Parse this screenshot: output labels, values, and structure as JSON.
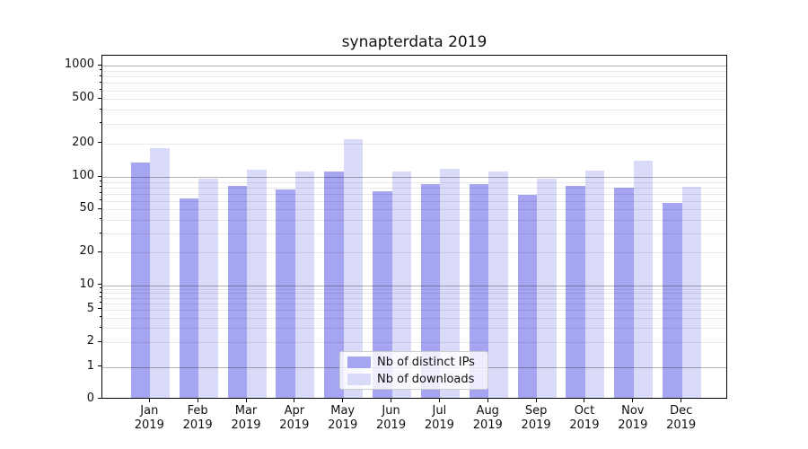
{
  "chart_data": {
    "type": "bar",
    "title": "synapterdata 2019",
    "categories": [
      "Jan",
      "Feb",
      "Mar",
      "Apr",
      "May",
      "Jun",
      "Jul",
      "Aug",
      "Sep",
      "Oct",
      "Nov",
      "Dec"
    ],
    "year_label": "2019",
    "series": [
      {
        "name": "Nb of distinct IPs",
        "color": "#a5a5f2",
        "values": [
          130,
          62,
          80,
          74,
          108,
          71,
          83,
          84,
          66,
          81,
          78,
          56
        ]
      },
      {
        "name": "Nb of downloads",
        "color": "#d9d9f8",
        "values": [
          175,
          93,
          113,
          108,
          212,
          108,
          115,
          108,
          93,
          110,
          137,
          79
        ]
      }
    ],
    "yscale": "symlog",
    "yticks": [
      0,
      1,
      2,
      5,
      10,
      20,
      50,
      100,
      200,
      500,
      1000
    ],
    "ylim": [
      0,
      1200
    ],
    "grid": true,
    "legend_position": "lower center"
  },
  "colors": {
    "major_grid": "#b3b3b3",
    "minor_grid": "#e9e9e9",
    "spine": "#000000",
    "background": "#ffffff"
  }
}
